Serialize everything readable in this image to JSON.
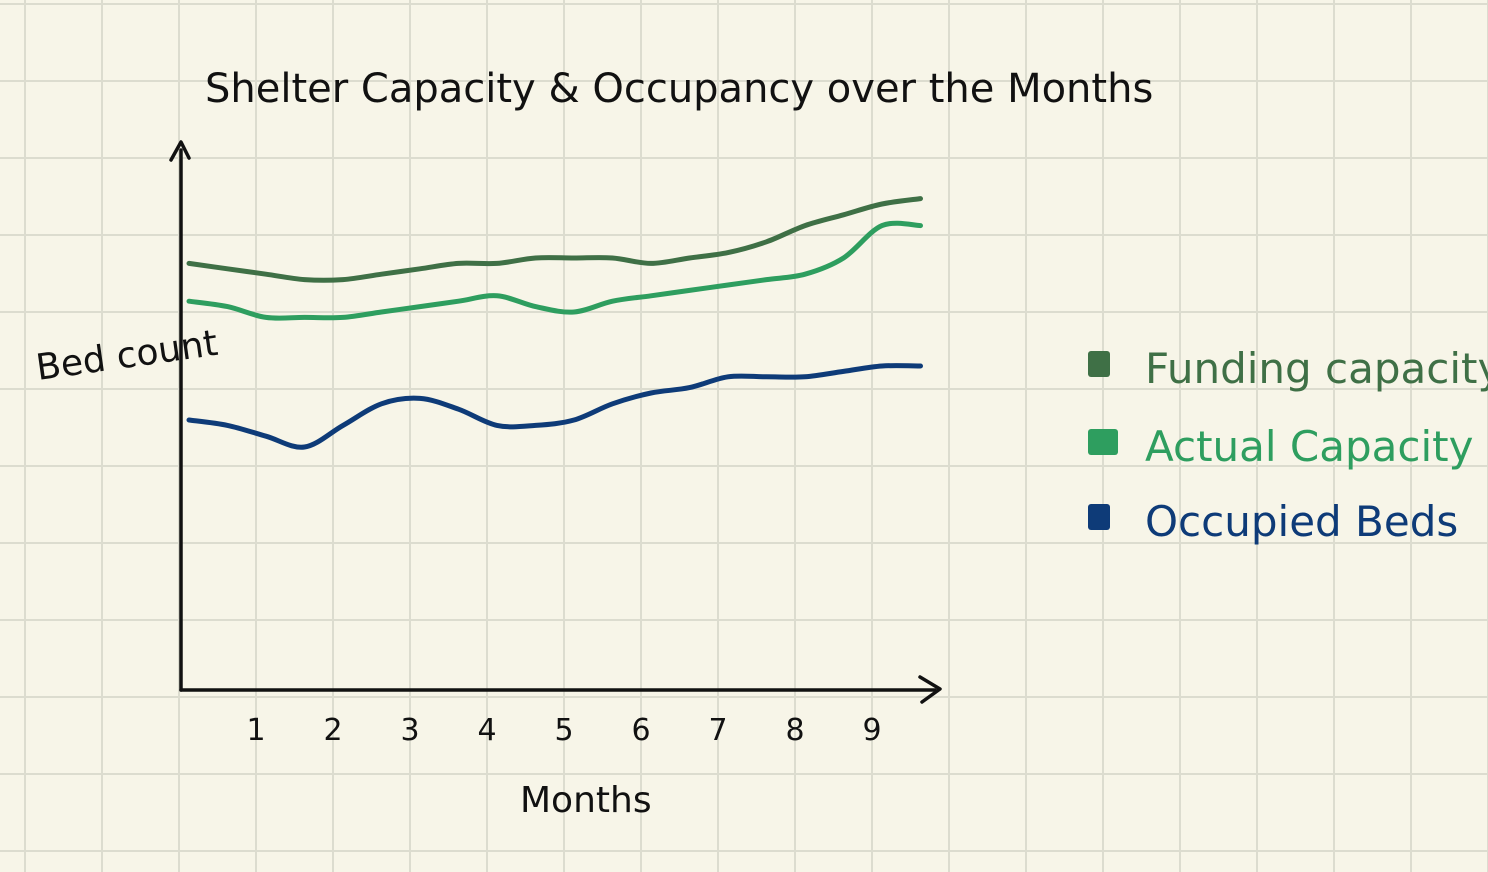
{
  "chart_data": {
    "type": "line",
    "title": "Shelter Capacity & Occupancy over the Months",
    "xlabel": "Months",
    "ylabel": "Bed count",
    "x": [
      0,
      0.5,
      1,
      1.5,
      2,
      2.5,
      3,
      3.5,
      4,
      4.5,
      5,
      5.5,
      6,
      6.5,
      7,
      7.5,
      8,
      8.5,
      9,
      9.5
    ],
    "xticks": [
      "1",
      "2",
      "3",
      "4",
      "5",
      "6",
      "7",
      "8",
      "9"
    ],
    "xlim": [
      0,
      9.7
    ],
    "ylim": [
      0,
      100
    ],
    "grid": true,
    "legend_position": "right",
    "series": [
      {
        "name": "Funding capacity",
        "color": "#3f7046",
        "values": [
          79,
          78,
          77,
          76,
          76,
          77,
          78,
          79,
          79,
          80,
          80,
          80,
          79,
          80,
          81,
          83,
          86,
          88,
          90,
          91
        ]
      },
      {
        "name": "Actual Capacity",
        "color": "#2e9e5f",
        "values": [
          72,
          71,
          69,
          69,
          69,
          70,
          71,
          72,
          73,
          71,
          70,
          72,
          73,
          74,
          75,
          76,
          77,
          80,
          86,
          86
        ]
      },
      {
        "name": "Occupied Beds",
        "color": "#0e3b78",
        "values": [
          50,
          49,
          47,
          45,
          49,
          53,
          54,
          52,
          49,
          49,
          50,
          53,
          55,
          56,
          58,
          58,
          58,
          59,
          60,
          60
        ]
      }
    ]
  }
}
